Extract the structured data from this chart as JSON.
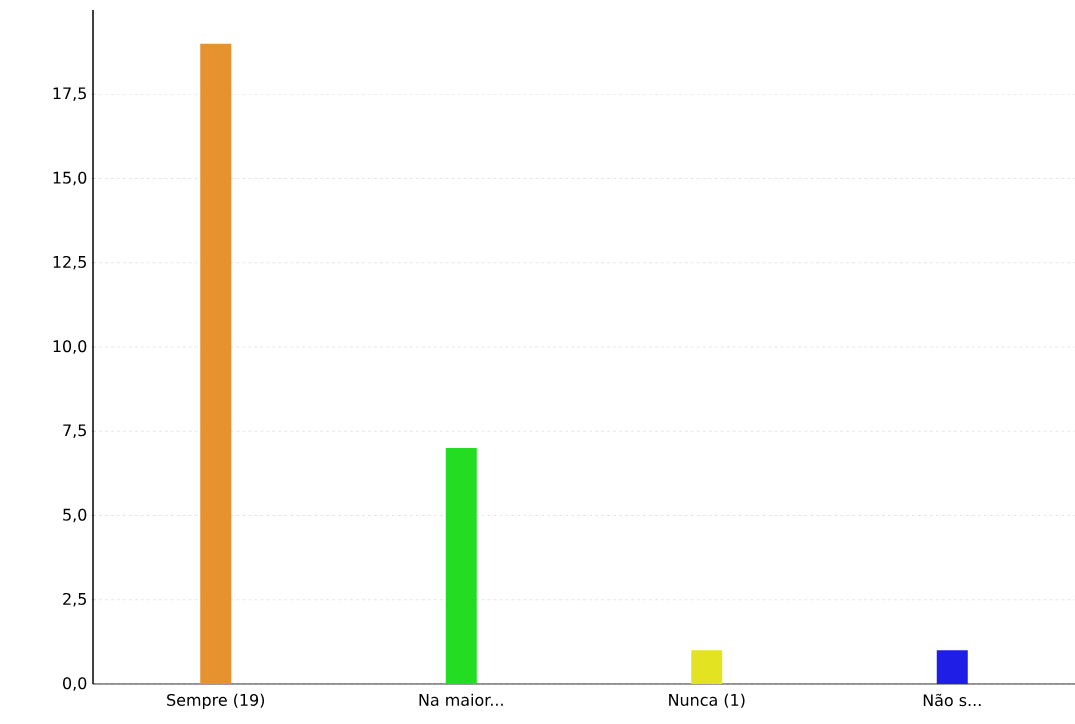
{
  "chart_data": {
    "type": "bar",
    "categories": [
      "Sempre (19)",
      "Na maior...",
      "Nunca (1)",
      "Não s..."
    ],
    "values": [
      19,
      7,
      1,
      1
    ],
    "colors": [
      "#e6922e",
      "#22dd22",
      "#e3e322",
      "#1e1ee6"
    ],
    "ylim": [
      0,
      20
    ],
    "yticks": [
      {
        "value": 0,
        "label": "0,0"
      },
      {
        "value": 2.5,
        "label": "2,5"
      },
      {
        "value": 5,
        "label": "5,0"
      },
      {
        "value": 7.5,
        "label": "7,5"
      },
      {
        "value": 10,
        "label": "10,0"
      },
      {
        "value": 12.5,
        "label": "12,5"
      },
      {
        "value": 15,
        "label": "15,0"
      },
      {
        "value": 17.5,
        "label": "17,5"
      }
    ],
    "grid": "y"
  }
}
